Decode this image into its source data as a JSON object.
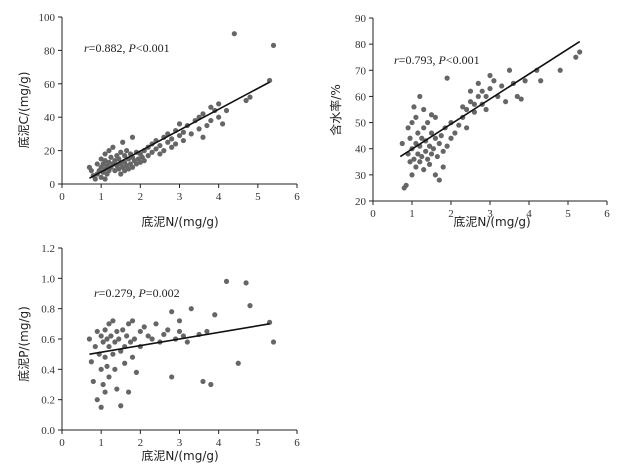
{
  "chart_data": [
    {
      "type": "scatter",
      "xlabel": "底泥N/(mg/g)",
      "ylabel": "底泥C/(mg/g)",
      "xlim": [
        0,
        6
      ],
      "ylim": [
        0,
        100
      ],
      "xticks": [
        "0",
        "1",
        "2",
        "3",
        "4",
        "5",
        "6"
      ],
      "yticks": [
        "0",
        "20",
        "40",
        "60",
        "80",
        "100"
      ],
      "annotation": {
        "r_label": "r",
        "r_value": "=0.882, ",
        "p_label": "P",
        "p_value": "<0.001"
      },
      "fit_line": {
        "x": [
          0.7,
          5.3
        ],
        "y": [
          3.5,
          61
        ]
      },
      "points": [
        [
          0.7,
          10
        ],
        [
          0.75,
          8
        ],
        [
          0.8,
          5
        ],
        [
          0.85,
          3
        ],
        [
          0.9,
          6
        ],
        [
          0.9,
          12
        ],
        [
          0.95,
          8
        ],
        [
          1.0,
          4
        ],
        [
          1.0,
          10
        ],
        [
          1.0,
          15
        ],
        [
          1.05,
          7
        ],
        [
          1.05,
          12
        ],
        [
          1.1,
          3
        ],
        [
          1.1,
          9
        ],
        [
          1.1,
          14
        ],
        [
          1.1,
          18
        ],
        [
          1.15,
          6
        ],
        [
          1.15,
          11
        ],
        [
          1.2,
          8
        ],
        [
          1.2,
          13
        ],
        [
          1.2,
          20
        ],
        [
          1.25,
          10
        ],
        [
          1.25,
          16
        ],
        [
          1.3,
          12
        ],
        [
          1.3,
          22
        ],
        [
          1.35,
          8
        ],
        [
          1.35,
          14
        ],
        [
          1.4,
          11
        ],
        [
          1.4,
          17
        ],
        [
          1.45,
          9
        ],
        [
          1.45,
          15
        ],
        [
          1.5,
          6
        ],
        [
          1.5,
          12
        ],
        [
          1.5,
          19
        ],
        [
          1.55,
          10
        ],
        [
          1.55,
          25
        ],
        [
          1.6,
          8
        ],
        [
          1.6,
          13
        ],
        [
          1.6,
          17
        ],
        [
          1.65,
          11
        ],
        [
          1.65,
          20
        ],
        [
          1.7,
          9
        ],
        [
          1.7,
          15
        ],
        [
          1.75,
          12
        ],
        [
          1.75,
          18
        ],
        [
          1.8,
          10
        ],
        [
          1.8,
          16
        ],
        [
          1.8,
          28
        ],
        [
          1.85,
          14
        ],
        [
          1.9,
          12
        ],
        [
          1.9,
          19
        ],
        [
          1.95,
          15
        ],
        [
          2.0,
          13
        ],
        [
          2.0,
          18
        ],
        [
          2.05,
          16
        ],
        [
          2.1,
          20
        ],
        [
          2.1,
          14
        ],
        [
          2.2,
          17
        ],
        [
          2.2,
          22
        ],
        [
          2.3,
          19
        ],
        [
          2.3,
          24
        ],
        [
          2.4,
          21
        ],
        [
          2.4,
          26
        ],
        [
          2.5,
          18
        ],
        [
          2.5,
          23
        ],
        [
          2.6,
          28
        ],
        [
          2.6,
          20
        ],
        [
          2.7,
          25
        ],
        [
          2.7,
          30
        ],
        [
          2.8,
          27
        ],
        [
          2.8,
          22
        ],
        [
          2.9,
          32
        ],
        [
          2.9,
          24
        ],
        [
          3.0,
          29
        ],
        [
          3.0,
          36
        ],
        [
          3.1,
          31
        ],
        [
          3.1,
          26
        ],
        [
          3.2,
          35
        ],
        [
          3.3,
          30
        ],
        [
          3.4,
          38
        ],
        [
          3.5,
          33
        ],
        [
          3.5,
          40
        ],
        [
          3.6,
          28
        ],
        [
          3.6,
          42
        ],
        [
          3.7,
          35
        ],
        [
          3.8,
          38
        ],
        [
          3.8,
          46
        ],
        [
          3.9,
          44
        ],
        [
          4.0,
          40
        ],
        [
          4.0,
          48
        ],
        [
          4.1,
          36
        ],
        [
          4.2,
          44
        ],
        [
          4.4,
          90
        ],
        [
          4.7,
          50
        ],
        [
          4.8,
          52
        ],
        [
          5.3,
          62
        ],
        [
          5.4,
          83
        ]
      ]
    },
    {
      "type": "scatter",
      "xlabel": "底泥N/(mg/g)",
      "ylabel": "含水率/%",
      "xlim": [
        0,
        6
      ],
      "ylim": [
        20,
        90
      ],
      "xticks": [
        "0",
        "1",
        "2",
        "3",
        "4",
        "5",
        "6"
      ],
      "yticks": [
        "20",
        "30",
        "40",
        "50",
        "60",
        "70",
        "80",
        "90"
      ],
      "annotation": {
        "r_label": "r",
        "r_value": "=0.793, ",
        "p_label": "P",
        "p_value": "<0.001"
      },
      "fit_line": {
        "x": [
          0.7,
          5.3
        ],
        "y": [
          37,
          81
        ]
      },
      "points": [
        [
          0.75,
          42
        ],
        [
          0.8,
          25
        ],
        [
          0.85,
          26
        ],
        [
          0.9,
          38
        ],
        [
          0.9,
          48
        ],
        [
          0.95,
          35
        ],
        [
          0.95,
          44
        ],
        [
          1.0,
          30
        ],
        [
          1.0,
          40
        ],
        [
          1.0,
          50
        ],
        [
          1.05,
          36
        ],
        [
          1.05,
          56
        ],
        [
          1.1,
          33
        ],
        [
          1.1,
          42
        ],
        [
          1.1,
          52
        ],
        [
          1.15,
          38
        ],
        [
          1.15,
          46
        ],
        [
          1.2,
          35
        ],
        [
          1.2,
          41
        ],
        [
          1.2,
          60
        ],
        [
          1.25,
          37
        ],
        [
          1.25,
          44
        ],
        [
          1.3,
          32
        ],
        [
          1.3,
          48
        ],
        [
          1.3,
          55
        ],
        [
          1.35,
          39
        ],
        [
          1.35,
          43
        ],
        [
          1.4,
          36
        ],
        [
          1.4,
          50
        ],
        [
          1.45,
          41
        ],
        [
          1.45,
          34
        ],
        [
          1.5,
          38
        ],
        [
          1.5,
          46
        ],
        [
          1.5,
          53
        ],
        [
          1.55,
          40
        ],
        [
          1.6,
          30
        ],
        [
          1.6,
          44
        ],
        [
          1.6,
          52
        ],
        [
          1.65,
          37
        ],
        [
          1.7,
          42
        ],
        [
          1.7,
          28
        ],
        [
          1.75,
          45
        ],
        [
          1.8,
          39
        ],
        [
          1.8,
          33
        ],
        [
          1.85,
          48
        ],
        [
          1.9,
          41
        ],
        [
          1.9,
          67
        ],
        [
          2.0,
          44
        ],
        [
          2.0,
          50
        ],
        [
          2.1,
          46
        ],
        [
          2.2,
          49
        ],
        [
          2.3,
          52
        ],
        [
          2.3,
          56
        ],
        [
          2.4,
          55
        ],
        [
          2.4,
          48
        ],
        [
          2.5,
          58
        ],
        [
          2.5,
          62
        ],
        [
          2.6,
          54
        ],
        [
          2.6,
          57
        ],
        [
          2.7,
          60
        ],
        [
          2.7,
          65
        ],
        [
          2.8,
          57
        ],
        [
          2.8,
          62
        ],
        [
          2.9,
          60
        ],
        [
          2.9,
          55
        ],
        [
          3.0,
          63
        ],
        [
          3.0,
          68
        ],
        [
          3.1,
          66
        ],
        [
          3.2,
          60
        ],
        [
          3.3,
          64
        ],
        [
          3.4,
          58
        ],
        [
          3.5,
          70
        ],
        [
          3.6,
          65
        ],
        [
          3.7,
          60
        ],
        [
          3.8,
          59
        ],
        [
          3.9,
          66
        ],
        [
          4.2,
          70
        ],
        [
          4.3,
          66
        ],
        [
          4.8,
          70
        ],
        [
          5.2,
          75
        ],
        [
          5.3,
          77
        ]
      ]
    },
    {
      "type": "scatter",
      "xlabel": "底泥N/(mg/g)",
      "ylabel": "底泥P/(mg/g)",
      "xlim": [
        0,
        6
      ],
      "ylim": [
        0.0,
        1.2
      ],
      "xticks": [
        "0",
        "1",
        "2",
        "3",
        "4",
        "5",
        "6"
      ],
      "yticks": [
        "0.0",
        "0.2",
        "0.4",
        "0.6",
        "0.8",
        "1.0",
        "1.2"
      ],
      "annotation": {
        "r_label": "r",
        "r_value": "=0.279, ",
        "p_label": "P",
        "p_value": "=0.002"
      },
      "fit_line": {
        "x": [
          0.7,
          5.3
        ],
        "y": [
          0.5,
          0.7
        ]
      },
      "points": [
        [
          0.7,
          0.6
        ],
        [
          0.75,
          0.45
        ],
        [
          0.8,
          0.32
        ],
        [
          0.85,
          0.55
        ],
        [
          0.9,
          0.65
        ],
        [
          0.9,
          0.2
        ],
        [
          0.95,
          0.5
        ],
        [
          1.0,
          0.62
        ],
        [
          1.0,
          0.4
        ],
        [
          1.0,
          0.15
        ],
        [
          1.05,
          0.58
        ],
        [
          1.05,
          0.3
        ],
        [
          1.1,
          0.66
        ],
        [
          1.1,
          0.48
        ],
        [
          1.1,
          0.25
        ],
        [
          1.15,
          0.6
        ],
        [
          1.15,
          0.42
        ],
        [
          1.2,
          0.55
        ],
        [
          1.2,
          0.7
        ],
        [
          1.2,
          0.35
        ],
        [
          1.25,
          0.62
        ],
        [
          1.3,
          0.5
        ],
        [
          1.3,
          0.72
        ],
        [
          1.35,
          0.58
        ],
        [
          1.35,
          0.4
        ],
        [
          1.4,
          0.65
        ],
        [
          1.4,
          0.27
        ],
        [
          1.45,
          0.6
        ],
        [
          1.5,
          0.52
        ],
        [
          1.5,
          0.16
        ],
        [
          1.55,
          0.66
        ],
        [
          1.6,
          0.55
        ],
        [
          1.6,
          0.44
        ],
        [
          1.65,
          0.62
        ],
        [
          1.7,
          0.7
        ],
        [
          1.7,
          0.25
        ],
        [
          1.75,
          0.58
        ],
        [
          1.8,
          0.48
        ],
        [
          1.8,
          0.72
        ],
        [
          1.85,
          0.6
        ],
        [
          1.9,
          0.38
        ],
        [
          2.0,
          0.65
        ],
        [
          2.0,
          0.55
        ],
        [
          2.1,
          0.68
        ],
        [
          2.2,
          0.62
        ],
        [
          2.3,
          0.6
        ],
        [
          2.4,
          0.7
        ],
        [
          2.5,
          0.58
        ],
        [
          2.6,
          0.63
        ],
        [
          2.7,
          0.66
        ],
        [
          2.8,
          0.78
        ],
        [
          2.8,
          0.35
        ],
        [
          2.9,
          0.6
        ],
        [
          3.0,
          0.72
        ],
        [
          3.0,
          0.65
        ],
        [
          3.1,
          0.62
        ],
        [
          3.2,
          0.58
        ],
        [
          3.3,
          0.8
        ],
        [
          3.5,
          0.63
        ],
        [
          3.6,
          0.32
        ],
        [
          3.7,
          0.65
        ],
        [
          3.8,
          0.3
        ],
        [
          3.9,
          0.76
        ],
        [
          4.2,
          0.98
        ],
        [
          4.5,
          0.44
        ],
        [
          4.7,
          0.97
        ],
        [
          4.8,
          0.82
        ],
        [
          5.3,
          0.71
        ],
        [
          5.4,
          0.58
        ]
      ]
    }
  ]
}
